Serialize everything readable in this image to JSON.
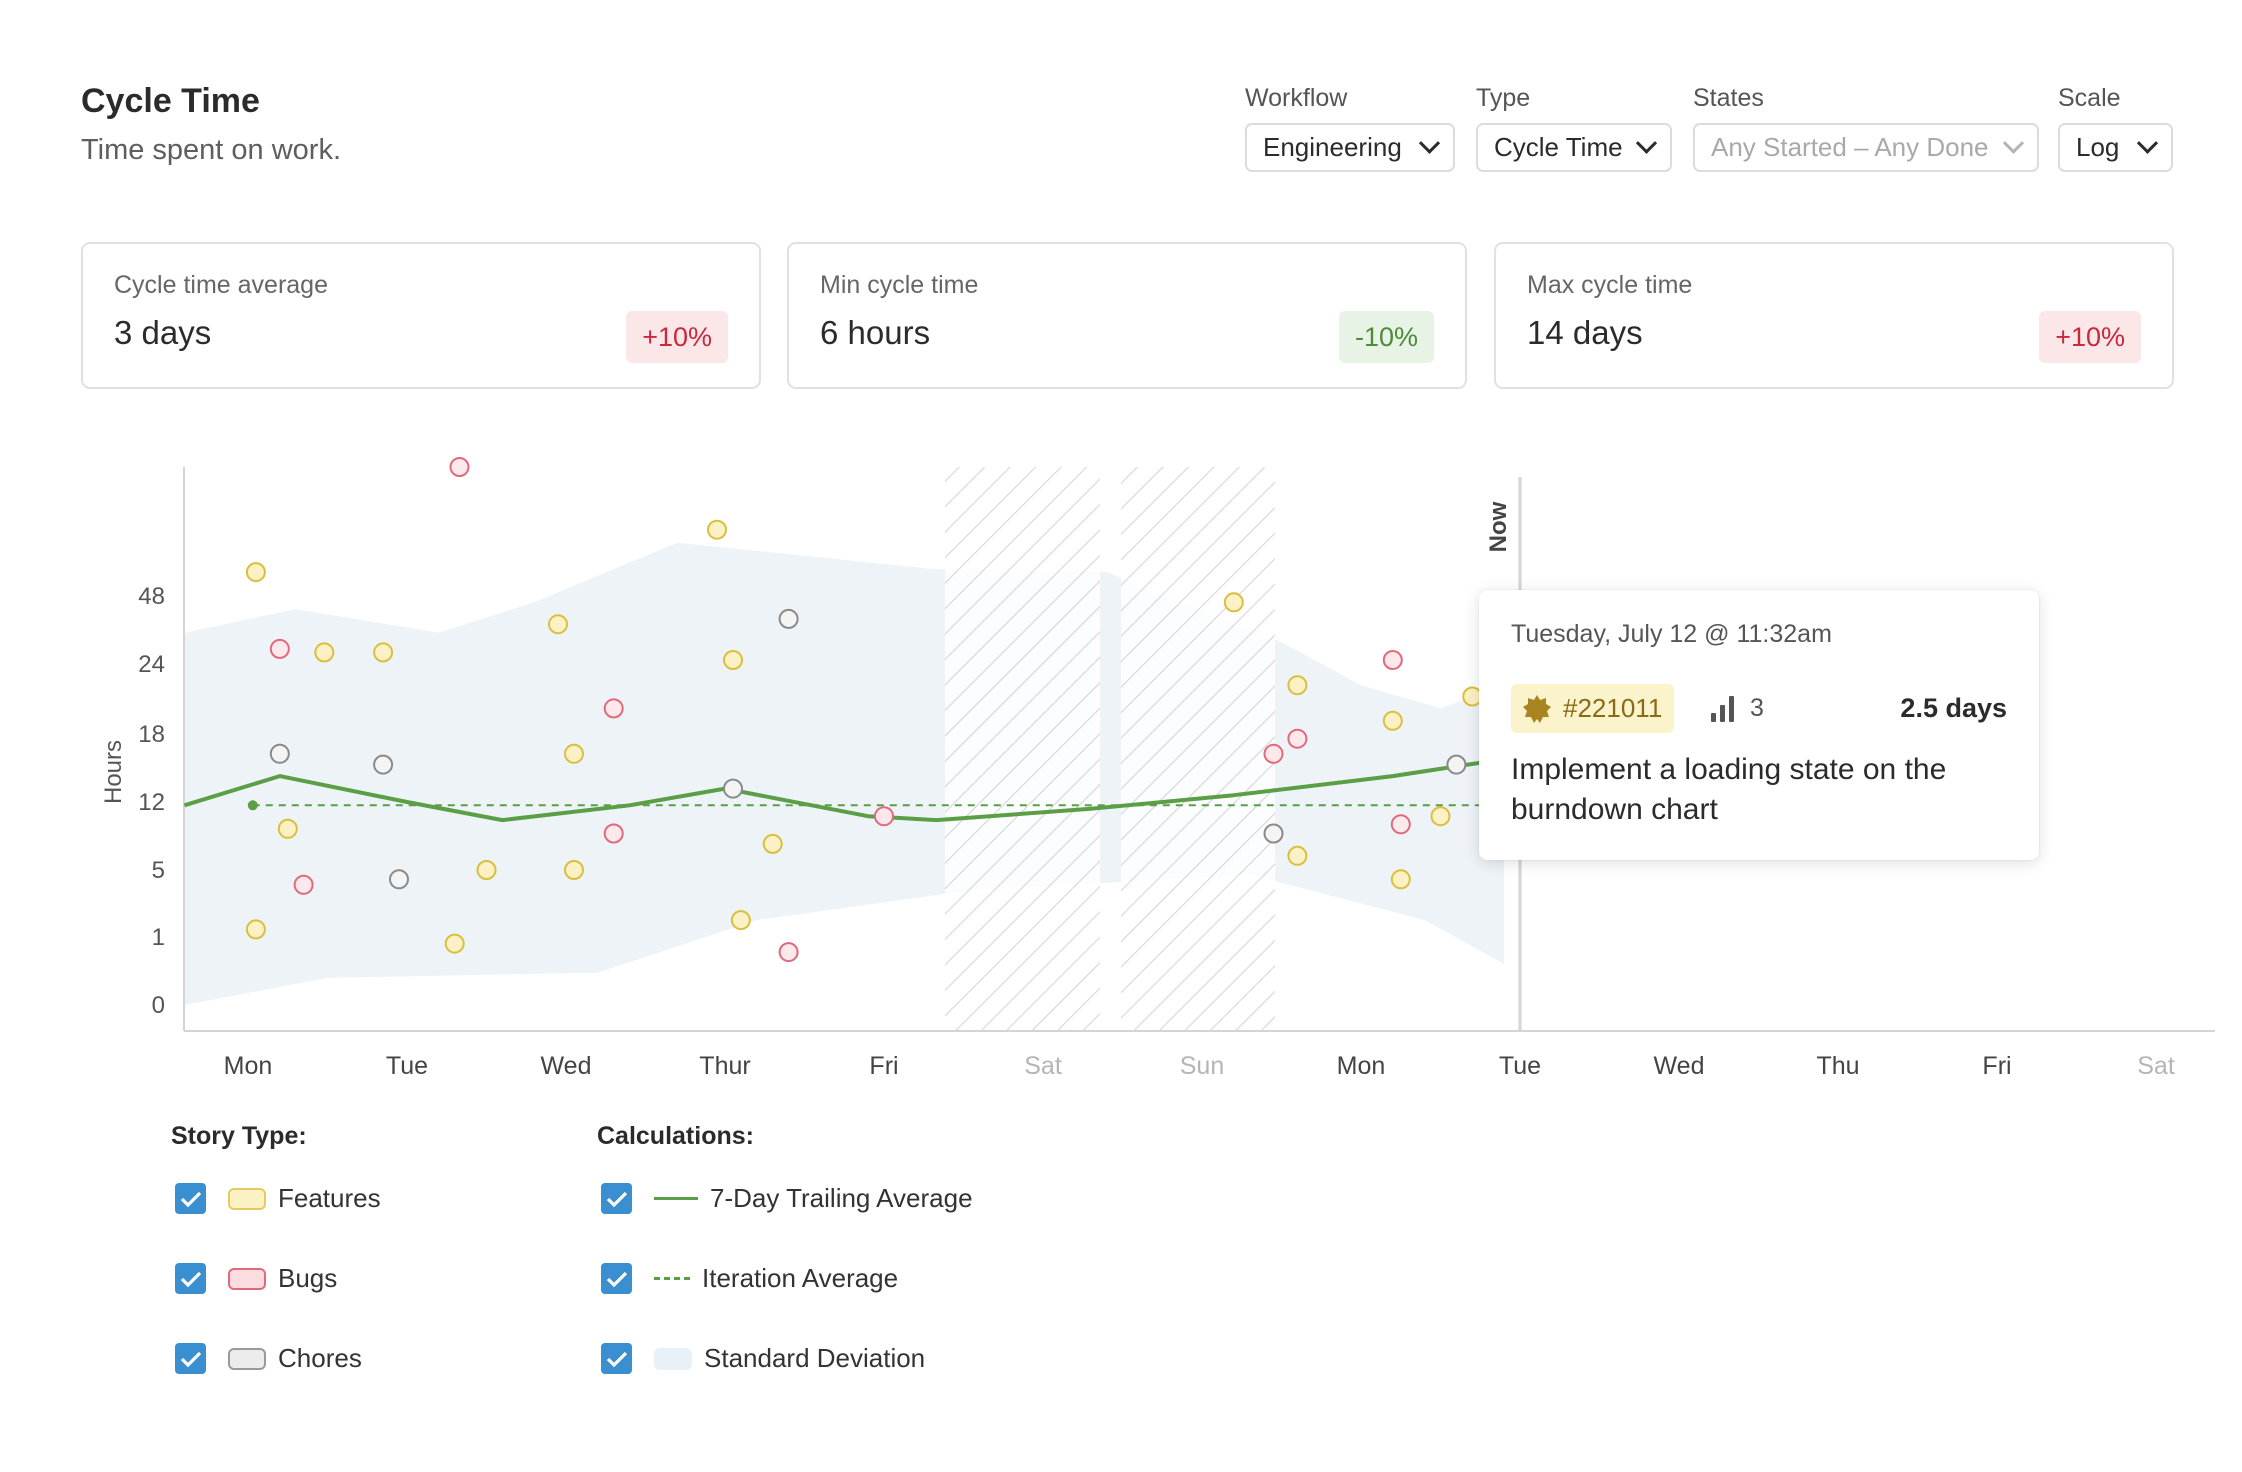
{
  "header": {
    "title": "Cycle Time",
    "subtitle": "Time spent on work."
  },
  "filters": {
    "workflow": {
      "label": "Workflow",
      "value": "Engineering"
    },
    "type": {
      "label": "Type",
      "value": "Cycle Time"
    },
    "states": {
      "label": "States",
      "value": "Any Started – Any Done"
    },
    "scale": {
      "label": "Scale",
      "value": "Log"
    }
  },
  "stats": [
    {
      "label": "Cycle time average",
      "value": "3 days",
      "change": "+10%",
      "trend": "up"
    },
    {
      "label": "Min cycle time",
      "value": "6 hours",
      "change": "-10%",
      "trend": "down"
    },
    {
      "label": "Max cycle time",
      "value": "14 days",
      "change": "+10%",
      "trend": "up"
    }
  ],
  "chart_data": {
    "type": "scatter",
    "ylabel": "Hours",
    "y_scale": "log",
    "y_ticks": [
      "0",
      "1",
      "5",
      "12",
      "18",
      "24",
      "48"
    ],
    "x_categories": [
      "Mon",
      "Tue",
      "Wed",
      "Thur",
      "Fri",
      "Sat",
      "Sun",
      "Mon",
      "Tue",
      "Wed",
      "Thu",
      "Fri",
      "Sat"
    ],
    "weekend_days": [
      "Sat",
      "Sun"
    ],
    "now_label": "Now",
    "now_day": 8,
    "colors": {
      "feature": "#e7d36b",
      "bug": "#e06a7c",
      "chore": "#8a8a8a",
      "trailing": "#5a9e46",
      "band": "#eef3f8"
    },
    "points": [
      {
        "day": 0.05,
        "hours": 55,
        "type": "feature"
      },
      {
        "day": 0.05,
        "hours": 1.2,
        "type": "feature"
      },
      {
        "day": 0.2,
        "hours": 28,
        "type": "bug"
      },
      {
        "day": 0.2,
        "hours": 16,
        "type": "chore"
      },
      {
        "day": 0.25,
        "hours": 8.5,
        "type": "feature"
      },
      {
        "day": 0.35,
        "hours": 3.5,
        "type": "bug"
      },
      {
        "day": 0.48,
        "hours": 27,
        "type": "feature"
      },
      {
        "day": 0.85,
        "hours": 27,
        "type": "feature"
      },
      {
        "day": 0.85,
        "hours": 15,
        "type": "chore"
      },
      {
        "day": 0.95,
        "hours": 4,
        "type": "chore"
      },
      {
        "day": 1.3,
        "hours": 0.8,
        "type": "feature"
      },
      {
        "day": 1.33,
        "hours": 100,
        "type": "bug"
      },
      {
        "day": 1.5,
        "hours": 5,
        "type": "feature"
      },
      {
        "day": 1.95,
        "hours": 36,
        "type": "feature"
      },
      {
        "day": 2.05,
        "hours": 16,
        "type": "feature"
      },
      {
        "day": 2.05,
        "hours": 5,
        "type": "feature"
      },
      {
        "day": 2.3,
        "hours": 8,
        "type": "bug"
      },
      {
        "day": 2.3,
        "hours": 20,
        "type": "bug"
      },
      {
        "day": 2.95,
        "hours": 70,
        "type": "feature"
      },
      {
        "day": 3.05,
        "hours": 25,
        "type": "feature"
      },
      {
        "day": 3.05,
        "hours": 13,
        "type": "chore"
      },
      {
        "day": 3.1,
        "hours": 1.5,
        "type": "feature"
      },
      {
        "day": 3.3,
        "hours": 7,
        "type": "feature"
      },
      {
        "day": 3.4,
        "hours": 38,
        "type": "chore"
      },
      {
        "day": 3.4,
        "hours": 0.6,
        "type": "bug"
      },
      {
        "day": 4.0,
        "hours": 10,
        "type": "bug"
      },
      {
        "day": 6.2,
        "hours": 45,
        "type": "feature"
      },
      {
        "day": 6.45,
        "hours": 16,
        "type": "bug"
      },
      {
        "day": 6.45,
        "hours": 8,
        "type": "chore"
      },
      {
        "day": 6.6,
        "hours": 22,
        "type": "feature"
      },
      {
        "day": 6.6,
        "hours": 17.5,
        "type": "bug"
      },
      {
        "day": 6.6,
        "hours": 6,
        "type": "feature"
      },
      {
        "day": 7.2,
        "hours": 25,
        "type": "bug"
      },
      {
        "day": 7.2,
        "hours": 19,
        "type": "feature"
      },
      {
        "day": 7.25,
        "hours": 9,
        "type": "bug"
      },
      {
        "day": 7.25,
        "hours": 4,
        "type": "feature"
      },
      {
        "day": 7.5,
        "hours": 10,
        "type": "feature"
      },
      {
        "day": 7.6,
        "hours": 15,
        "type": "chore"
      },
      {
        "day": 7.7,
        "hours": 21,
        "type": "feature"
      }
    ],
    "trailing_average": [
      {
        "day": -0.4,
        "hours": 11.5
      },
      {
        "day": 0.2,
        "hours": 14
      },
      {
        "day": 1.0,
        "hours": 12
      },
      {
        "day": 1.6,
        "hours": 9.5
      },
      {
        "day": 2.4,
        "hours": 11.5
      },
      {
        "day": 3.0,
        "hours": 13
      },
      {
        "day": 3.9,
        "hours": 10
      },
      {
        "day": 4.33,
        "hours": 9.5
      },
      {
        "day": 5.3,
        "hours": 11
      },
      {
        "day": 6.2,
        "hours": 12.5
      },
      {
        "day": 7.2,
        "hours": 14
      },
      {
        "day": 7.9,
        "hours": 15.5
      }
    ],
    "iteration_average": {
      "hours": 11.5,
      "from_day": 0.03,
      "to_day": 7.9
    },
    "std_dev_band": {
      "upper": [
        {
          "day": -0.4,
          "hours": 33
        },
        {
          "day": 0.3,
          "hours": 42
        },
        {
          "day": 1.2,
          "hours": 33
        },
        {
          "day": 1.8,
          "hours": 45
        },
        {
          "day": 2.7,
          "hours": 65
        },
        {
          "day": 4.3,
          "hours": 56
        },
        {
          "day": 5.4,
          "hours": 55
        },
        {
          "day": 6.5,
          "hours": 30
        },
        {
          "day": 7.0,
          "hours": 22
        },
        {
          "day": 7.5,
          "hours": 20
        },
        {
          "day": 7.9,
          "hours": 22
        }
      ],
      "lower": [
        {
          "day": -0.4,
          "hours": 0.05
        },
        {
          "day": 0.5,
          "hours": 0.25
        },
        {
          "day": 2.2,
          "hours": 0.3
        },
        {
          "day": 3.2,
          "hours": 1.5
        },
        {
          "day": 4.5,
          "hours": 3
        },
        {
          "day": 6.3,
          "hours": 4.5
        },
        {
          "day": 7.4,
          "hours": 1.5
        },
        {
          "day": 7.9,
          "hours": 0.4
        }
      ]
    }
  },
  "tooltip": {
    "date": "Tuesday, July 12 @ 11:32am",
    "story_id": "#221011",
    "estimate": "3",
    "duration": "2.5 days",
    "title": "Implement a loading state on the burndown chart"
  },
  "legend": {
    "story_type_heading": "Story Type:",
    "calculations_heading": "Calculations:",
    "story_types": [
      {
        "label": "Features",
        "checked": true
      },
      {
        "label": "Bugs",
        "checked": true
      },
      {
        "label": "Chores",
        "checked": true
      }
    ],
    "calculations": [
      {
        "label": "7-Day Trailing Average",
        "checked": true
      },
      {
        "label": "Iteration Average",
        "checked": true
      },
      {
        "label": "Standard Deviation",
        "checked": true
      }
    ]
  }
}
